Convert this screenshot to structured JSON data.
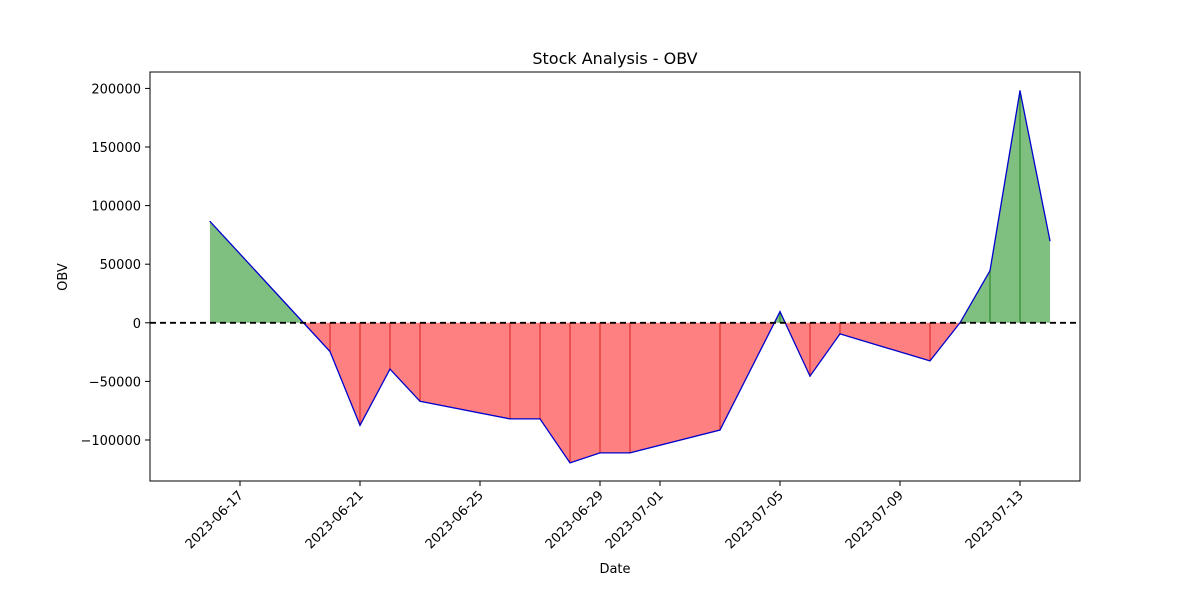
{
  "chart_data": {
    "type": "area",
    "title": "Stock Analysis - OBV",
    "xlabel": "Date",
    "ylabel": "OBV",
    "x": [
      "2023-06-16",
      "2023-06-20",
      "2023-06-21",
      "2023-06-22",
      "2023-06-23",
      "2023-06-26",
      "2023-06-27",
      "2023-06-28",
      "2023-06-29",
      "2023-06-30",
      "2023-07-03",
      "2023-07-05",
      "2023-07-06",
      "2023-07-07",
      "2023-07-10",
      "2023-07-11",
      "2023-07-12",
      "2023-07-13",
      "2023-07-14"
    ],
    "series": [
      {
        "values": [
          86500,
          -24500,
          -87500,
          -39500,
          -67000,
          -82000,
          -82000,
          -119500,
          -111000,
          -111000,
          -91500,
          9500,
          -45500,
          -9500,
          -32500,
          0,
          44500,
          198000,
          70000
        ]
      }
    ],
    "ylim": [
      -135000,
      214000
    ],
    "xlim": [
      "2023-06-14",
      "2023-07-15"
    ],
    "xticks": [
      "2023-06-17",
      "2023-06-21",
      "2023-06-25",
      "2023-06-29",
      "2023-07-01",
      "2023-07-05",
      "2023-07-09",
      "2023-07-13"
    ],
    "yticks": [
      -100000,
      -50000,
      0,
      50000,
      100000,
      150000,
      200000
    ],
    "baseline": 0,
    "grid": false,
    "colors": {
      "line": "#0000cc",
      "positive_fill": "#7fbf7f",
      "positive_edge": "#2e8b2e",
      "negative_fill": "#ff8080",
      "negative_edge": "#e03030",
      "baseline": "#000000"
    }
  }
}
